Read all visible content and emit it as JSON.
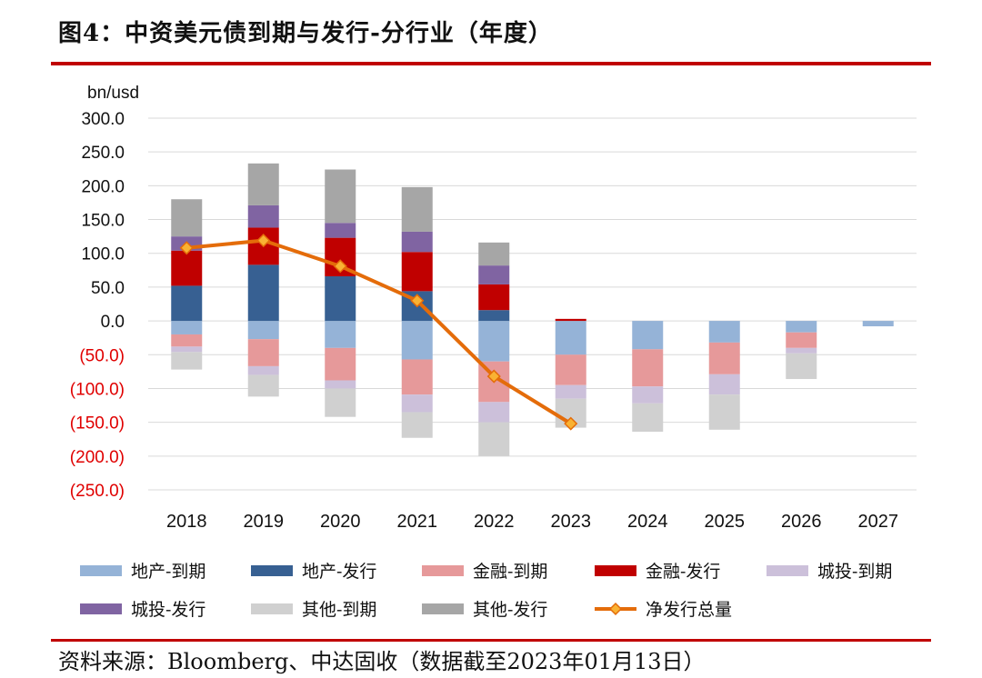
{
  "title": "图4：中资美元债到期与发行-分行业（年度）",
  "source": "资料来源：Bloomberg、中达固收（数据截至2023年01月13日）",
  "colors": {
    "rule": "#c00000",
    "negative_label": "#e00000",
    "grid": "#d9d9d9"
  },
  "chart_data": {
    "type": "bar",
    "stacked": true,
    "unit_label": "bn/usd",
    "categories": [
      "2018",
      "2019",
      "2020",
      "2021",
      "2022",
      "2023",
      "2024",
      "2025",
      "2026",
      "2027"
    ],
    "ylim": [
      -250,
      300
    ],
    "yticks": [
      300,
      250,
      200,
      150,
      100,
      50,
      0,
      -50,
      -100,
      -150,
      -200,
      -250
    ],
    "ytick_labels": [
      "300.0",
      "250.0",
      "200.0",
      "150.0",
      "100.0",
      "50.0",
      "0.0",
      "(50.0)",
      "(100.0)",
      "(150.0)",
      "(200.0)",
      "(250.0)"
    ],
    "grid": true,
    "legend_position": "bottom",
    "series": [
      {
        "name": "地产-到期",
        "color": "#95b3d7",
        "values": [
          -20,
          -27,
          -40,
          -57,
          -60,
          -50,
          -42,
          -32,
          -17,
          -8
        ]
      },
      {
        "name": "地产-发行",
        "color": "#376092",
        "values": [
          52,
          83,
          66,
          44,
          16,
          0,
          0,
          0,
          0,
          0
        ]
      },
      {
        "name": "金融-到期",
        "color": "#e6999a",
        "values": [
          -18,
          -40,
          -48,
          -52,
          -60,
          -45,
          -55,
          -47,
          -23,
          0
        ]
      },
      {
        "name": "金融-发行",
        "color": "#c00000",
        "values": [
          52,
          55,
          57,
          58,
          38,
          3,
          0,
          0,
          0,
          0
        ]
      },
      {
        "name": "城投-到期",
        "color": "#ccc0da",
        "values": [
          -8,
          -13,
          -12,
          -26,
          -30,
          -20,
          -25,
          -30,
          -8,
          0
        ]
      },
      {
        "name": "城投-发行",
        "color": "#8064a2",
        "values": [
          21,
          33,
          22,
          30,
          28,
          0,
          0,
          0,
          0,
          0
        ]
      },
      {
        "name": "其他-到期",
        "color": "#d0d0d0",
        "values": [
          -26,
          -32,
          -42,
          -38,
          -50,
          -43,
          -42,
          -52,
          -38,
          0
        ]
      },
      {
        "name": "其他-发行",
        "color": "#a6a6a6",
        "values": [
          55,
          62,
          79,
          66,
          34,
          0,
          0,
          0,
          0,
          0
        ]
      }
    ],
    "line": {
      "name": "净发行总量",
      "color": "#e46c0a",
      "marker_color": "#f9b233",
      "values": [
        108,
        119,
        81,
        30,
        -82,
        -152
      ]
    }
  }
}
